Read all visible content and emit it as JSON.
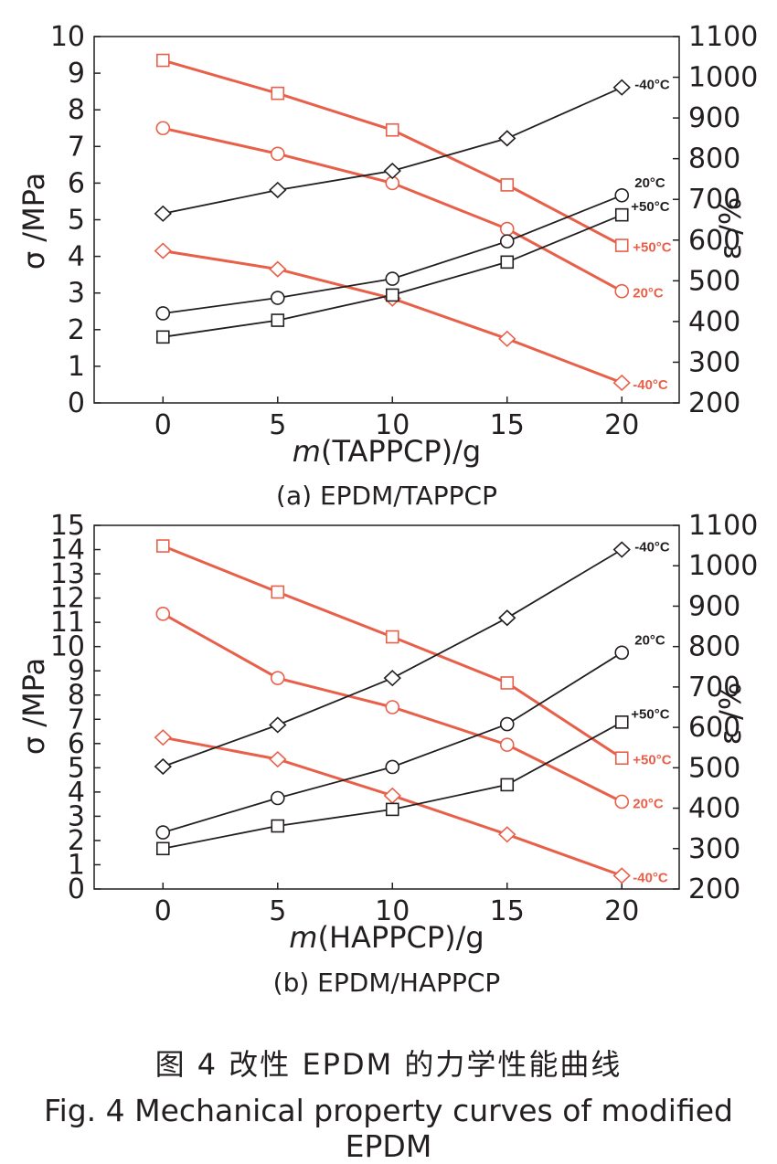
{
  "colors": {
    "stress_series": "#e8604a",
    "strain_series": "#231f20",
    "marker_fill": "#ffffff",
    "axis": "#231f20"
  },
  "chart_data": [
    {
      "type": "line",
      "panel": "a",
      "subcaption": "(a) EPDM/TAPPCP",
      "xlabel_italic": "m",
      "xlabel_rest": "(TAPPCP)/g",
      "ylabel_left": "σ /MPa",
      "ylabel_right": "ε /%",
      "x": [
        0,
        5,
        10,
        15,
        20
      ],
      "xticks": [
        0,
        5,
        10,
        15,
        20
      ],
      "xlim": [
        -3,
        22.5
      ],
      "ylim_left": [
        0,
        10
      ],
      "yticks_left": [
        0,
        1,
        2,
        3,
        4,
        5,
        6,
        7,
        8,
        9,
        10
      ],
      "ylim_right": [
        200,
        1100
      ],
      "yticks_right": [
        200,
        300,
        400,
        500,
        600,
        700,
        800,
        900,
        1000,
        1100
      ],
      "series": [
        {
          "label": "+50°C",
          "axis": "left",
          "marker": "square",
          "color": "#e8604a",
          "values": [
            9.35,
            8.45,
            7.45,
            5.95,
            4.3
          ]
        },
        {
          "label": "20°C",
          "axis": "left",
          "marker": "circle",
          "color": "#e8604a",
          "values": [
            7.5,
            6.8,
            6.0,
            4.75,
            3.05
          ]
        },
        {
          "label": "-40°C",
          "axis": "left",
          "marker": "diamond",
          "color": "#e8604a",
          "values": [
            4.15,
            3.65,
            2.85,
            1.75,
            0.55
          ]
        },
        {
          "label": "-40°C",
          "axis": "right",
          "marker": "diamond",
          "color": "#231f20",
          "values": [
            665,
            723,
            770,
            850,
            975
          ]
        },
        {
          "label": "20°C",
          "axis": "right",
          "marker": "circle",
          "color": "#231f20",
          "values": [
            420,
            458,
            505,
            597,
            710
          ]
        },
        {
          "label": "+50°C",
          "axis": "right",
          "marker": "square",
          "color": "#231f20",
          "values": [
            362,
            403,
            465,
            546,
            662
          ]
        }
      ]
    },
    {
      "type": "line",
      "panel": "b",
      "subcaption": "(b) EPDM/HAPPCP",
      "xlabel_italic": "m",
      "xlabel_rest": "(HAPPCP)/g",
      "ylabel_left": "σ /MPa",
      "ylabel_right": "ε /%",
      "x": [
        0,
        5,
        10,
        15,
        20
      ],
      "xticks": [
        0,
        5,
        10,
        15,
        20
      ],
      "xlim": [
        -3,
        22.5
      ],
      "ylim_left": [
        0,
        15
      ],
      "yticks_left": [
        0,
        1,
        2,
        3,
        4,
        5,
        6,
        7,
        8,
        9,
        10,
        11,
        12,
        13,
        14,
        15
      ],
      "ylim_right": [
        200,
        1100
      ],
      "yticks_right": [
        200,
        300,
        400,
        500,
        600,
        700,
        800,
        900,
        1000,
        1100
      ],
      "series": [
        {
          "label": "+50°C",
          "axis": "left",
          "marker": "square",
          "color": "#e8604a",
          "values": [
            14.15,
            12.25,
            10.4,
            8.5,
            5.4
          ]
        },
        {
          "label": "20°C",
          "axis": "left",
          "marker": "circle",
          "color": "#e8604a",
          "values": [
            11.35,
            8.7,
            7.5,
            5.95,
            3.6
          ]
        },
        {
          "label": "-40°C",
          "axis": "left",
          "marker": "diamond",
          "color": "#e8604a",
          "values": [
            6.25,
            5.35,
            3.85,
            2.25,
            0.55
          ]
        },
        {
          "label": "-40°C",
          "axis": "right",
          "marker": "diamond",
          "color": "#231f20",
          "values": [
            503,
            606,
            722,
            871,
            1040
          ]
        },
        {
          "label": "20°C",
          "axis": "right",
          "marker": "circle",
          "color": "#231f20",
          "values": [
            340,
            425,
            502,
            608,
            785
          ]
        },
        {
          "label": "+50°C",
          "axis": "right",
          "marker": "square",
          "color": "#231f20",
          "values": [
            300,
            356,
            397,
            458,
            613
          ]
        }
      ]
    }
  ],
  "figure": {
    "caption_zh": "图 4   改性 EPDM 的力学性能曲线",
    "caption_en": "Fig. 4    Mechanical property curves of modified EPDM"
  }
}
